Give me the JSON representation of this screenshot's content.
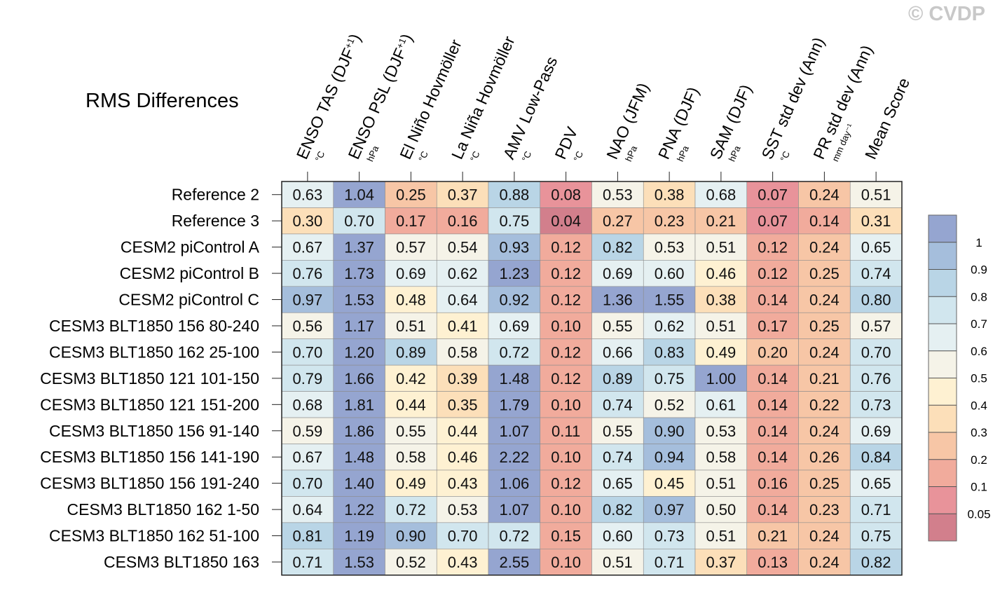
{
  "copyright": "© CVDP",
  "chart_data": {
    "type": "heatmap",
    "title": "RMS Differences",
    "columns": [
      {
        "label": "ENSO TAS (DJF",
        "sup": "+1",
        "close": ")",
        "unit": "°C"
      },
      {
        "label": "ENSO PSL (DJF",
        "sup": "+1",
        "close": ")",
        "unit": "hPa"
      },
      {
        "label": "El Niño Hovmöller",
        "sup": "",
        "close": "",
        "unit": "°C"
      },
      {
        "label": "La Niña Hovmöller",
        "sup": "",
        "close": "",
        "unit": "°C"
      },
      {
        "label": "AMV Low-Pass",
        "sup": "",
        "close": "",
        "unit": "°C"
      },
      {
        "label": "PDV",
        "sup": "",
        "close": "",
        "unit": "°C"
      },
      {
        "label": "NAO (JFM)",
        "sup": "",
        "close": "",
        "unit": "hPa"
      },
      {
        "label": "PNA (DJF)",
        "sup": "",
        "close": "",
        "unit": "hPa"
      },
      {
        "label": "SAM (DJF)",
        "sup": "",
        "close": "",
        "unit": "hPa"
      },
      {
        "label": "SST std dev (Ann)",
        "sup": "",
        "close": "",
        "unit": "°C"
      },
      {
        "label": "PR std dev (Ann)",
        "sup": "",
        "close": "",
        "unit": "mm day⁻¹"
      },
      {
        "label": "Mean Score",
        "sup": "",
        "close": "",
        "unit": ""
      }
    ],
    "rows": [
      {
        "name": "Reference 2",
        "values": [
          0.63,
          1.04,
          0.25,
          0.37,
          0.88,
          0.08,
          0.53,
          0.38,
          0.68,
          0.07,
          0.24,
          0.51
        ]
      },
      {
        "name": "Reference 3",
        "values": [
          0.3,
          0.7,
          0.17,
          0.16,
          0.75,
          0.04,
          0.27,
          0.23,
          0.21,
          0.07,
          0.14,
          0.31
        ]
      },
      {
        "name": "CESM2 piControl A",
        "values": [
          0.67,
          1.37,
          0.57,
          0.54,
          0.93,
          0.12,
          0.82,
          0.53,
          0.51,
          0.12,
          0.24,
          0.65
        ]
      },
      {
        "name": "CESM2 piControl B",
        "values": [
          0.76,
          1.73,
          0.69,
          0.62,
          1.23,
          0.12,
          0.69,
          0.6,
          0.46,
          0.12,
          0.25,
          0.74
        ]
      },
      {
        "name": "CESM2 piControl C",
        "values": [
          0.97,
          1.53,
          0.48,
          0.64,
          0.92,
          0.12,
          1.36,
          1.55,
          0.38,
          0.14,
          0.24,
          0.8
        ]
      },
      {
        "name": "CESM3 BLT1850 156 80-240",
        "values": [
          0.56,
          1.17,
          0.51,
          0.41,
          0.69,
          0.1,
          0.55,
          0.62,
          0.51,
          0.17,
          0.25,
          0.57
        ]
      },
      {
        "name": "CESM3 BLT1850 162 25-100",
        "values": [
          0.7,
          1.2,
          0.89,
          0.58,
          0.72,
          0.12,
          0.66,
          0.83,
          0.49,
          0.2,
          0.24,
          0.7
        ]
      },
      {
        "name": "CESM3 BLT1850 121 101-150",
        "values": [
          0.79,
          1.66,
          0.42,
          0.39,
          1.48,
          0.12,
          0.89,
          0.75,
          1.0,
          0.14,
          0.21,
          0.76
        ]
      },
      {
        "name": "CESM3 BLT1850 121 151-200",
        "values": [
          0.68,
          1.81,
          0.44,
          0.35,
          1.79,
          0.1,
          0.74,
          0.52,
          0.61,
          0.14,
          0.22,
          0.73
        ]
      },
      {
        "name": "CESM3 BLT1850 156 91-140",
        "values": [
          0.59,
          1.86,
          0.55,
          0.44,
          1.07,
          0.11,
          0.55,
          0.9,
          0.53,
          0.14,
          0.24,
          0.69
        ]
      },
      {
        "name": "CESM3 BLT1850 156 141-190",
        "values": [
          0.67,
          1.48,
          0.58,
          0.46,
          2.22,
          0.1,
          0.74,
          0.94,
          0.58,
          0.14,
          0.26,
          0.84
        ]
      },
      {
        "name": "CESM3 BLT1850 156 191-240",
        "values": [
          0.7,
          1.4,
          0.49,
          0.43,
          1.06,
          0.12,
          0.65,
          0.45,
          0.51,
          0.16,
          0.25,
          0.65
        ]
      },
      {
        "name": "CESM3 BLT1850 162 1-50",
        "values": [
          0.64,
          1.22,
          0.72,
          0.53,
          1.07,
          0.1,
          0.82,
          0.97,
          0.5,
          0.14,
          0.23,
          0.71
        ]
      },
      {
        "name": "CESM3 BLT1850 162 51-100",
        "values": [
          0.81,
          1.19,
          0.9,
          0.7,
          0.72,
          0.15,
          0.6,
          0.73,
          0.51,
          0.21,
          0.24,
          0.75
        ]
      },
      {
        "name": "CESM3 BLT1850 163",
        "values": [
          0.71,
          1.53,
          0.52,
          0.43,
          2.55,
          0.1,
          0.51,
          0.71,
          0.37,
          0.13,
          0.24,
          0.82
        ]
      }
    ],
    "colorbar": {
      "levels": [
        0.05,
        0.1,
        0.2,
        0.3,
        0.4,
        0.5,
        0.6,
        0.7,
        0.8,
        0.9,
        1
      ],
      "level_labels": [
        "0.05",
        "0.1",
        "0.2",
        "0.3",
        "0.4",
        "0.5",
        "0.6",
        "0.7",
        "0.8",
        "0.9",
        "1"
      ],
      "colors": [
        "#d27f8c",
        "#e8939a",
        "#f1ab9c",
        "#f7c6a6",
        "#fcdfb9",
        "#fef1d2",
        "#f5f3e8",
        "#e5f0f2",
        "#d1e6ee",
        "#b9d5e6",
        "#a5bedc",
        "#95a5d0"
      ]
    }
  }
}
